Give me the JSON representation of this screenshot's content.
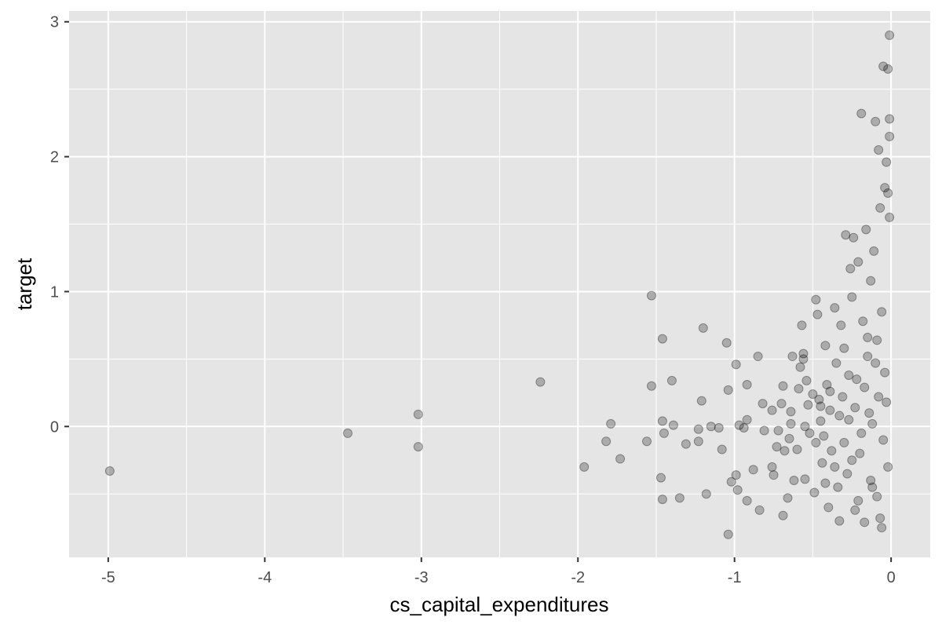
{
  "chart_data": {
    "type": "scatter",
    "xlabel": "cs_capital_expenditures",
    "ylabel": "target",
    "xlim": [
      -5.25,
      0.25
    ],
    "ylim": [
      -0.97,
      3.08
    ],
    "x_ticks": [
      -5,
      -4,
      -3,
      -2,
      -1,
      0
    ],
    "x_tick_labels": [
      "-5",
      "-4",
      "-3",
      "-2",
      "-1",
      "0"
    ],
    "y_ticks": [
      0,
      1,
      2,
      3
    ],
    "y_tick_labels": [
      "0",
      "1",
      "2",
      "3"
    ],
    "grid": true,
    "point_color": "#000000",
    "point_alpha": 0.25,
    "panel_background": "#e5e5e5",
    "grid_color": "#ffffff",
    "points": [
      [
        -4.99,
        -0.33
      ],
      [
        -3.47,
        -0.05
      ],
      [
        -3.02,
        0.09
      ],
      [
        -3.02,
        -0.15
      ],
      [
        -2.24,
        0.33
      ],
      [
        -1.96,
        -0.3
      ],
      [
        -1.79,
        0.02
      ],
      [
        -1.82,
        -0.11
      ],
      [
        -1.73,
        -0.24
      ],
      [
        -1.56,
        -0.11
      ],
      [
        -1.53,
        0.97
      ],
      [
        -1.53,
        0.3
      ],
      [
        -1.46,
        0.65
      ],
      [
        -1.46,
        0.04
      ],
      [
        -1.45,
        -0.05
      ],
      [
        -1.47,
        -0.38
      ],
      [
        -1.46,
        -0.54
      ],
      [
        -1.4,
        0.34
      ],
      [
        -1.39,
        0.01
      ],
      [
        -1.35,
        -0.53
      ],
      [
        -1.31,
        -0.13
      ],
      [
        -1.23,
        -0.02
      ],
      [
        -1.23,
        -0.11
      ],
      [
        -1.21,
        0.19
      ],
      [
        -1.2,
        0.73
      ],
      [
        -1.18,
        -0.5
      ],
      [
        -1.15,
        0.0
      ],
      [
        -1.1,
        -0.01
      ],
      [
        -1.08,
        -0.17
      ],
      [
        -1.05,
        0.62
      ],
      [
        -1.04,
        0.27
      ],
      [
        -1.04,
        -0.8
      ],
      [
        -1.02,
        -0.41
      ],
      [
        -0.99,
        0.46
      ],
      [
        -0.99,
        -0.36
      ],
      [
        -0.98,
        -0.47
      ],
      [
        -0.97,
        0.01
      ],
      [
        -0.94,
        -0.01
      ],
      [
        -0.92,
        0.05
      ],
      [
        -0.92,
        0.31
      ],
      [
        -0.92,
        -0.55
      ],
      [
        -0.88,
        -0.32
      ],
      [
        -0.85,
        0.52
      ],
      [
        -0.84,
        -0.62
      ],
      [
        -0.82,
        0.17
      ],
      [
        -0.81,
        -0.03
      ],
      [
        -0.76,
        0.12
      ],
      [
        -0.76,
        -0.3
      ],
      [
        -0.75,
        -0.36
      ],
      [
        -0.73,
        -0.15
      ],
      [
        -0.72,
        -0.03
      ],
      [
        -0.7,
        0.17
      ],
      [
        -0.69,
        0.3
      ],
      [
        -0.69,
        -0.66
      ],
      [
        -0.68,
        -0.18
      ],
      [
        -0.66,
        -0.53
      ],
      [
        -0.65,
        -0.09
      ],
      [
        -0.64,
        0.11
      ],
      [
        -0.64,
        0.02
      ],
      [
        -0.63,
        0.52
      ],
      [
        -0.62,
        -0.4
      ],
      [
        -0.6,
        -0.17
      ],
      [
        -0.59,
        0.28
      ],
      [
        -0.58,
        0.44
      ],
      [
        -0.57,
        0.75
      ],
      [
        -0.56,
        0.54
      ],
      [
        -0.56,
        0.5
      ],
      [
        -0.55,
        0.0
      ],
      [
        -0.55,
        -0.39
      ],
      [
        -0.54,
        0.34
      ],
      [
        -0.53,
        0.16
      ],
      [
        -0.52,
        -0.05
      ],
      [
        -0.5,
        0.24
      ],
      [
        -0.49,
        -0.49
      ],
      [
        -0.48,
        0.94
      ],
      [
        -0.47,
        0.83
      ],
      [
        -0.46,
        0.2
      ],
      [
        -0.45,
        0.04
      ],
      [
        -0.44,
        -0.27
      ],
      [
        -0.43,
        -0.07
      ],
      [
        -0.42,
        0.6
      ],
      [
        -0.41,
        0.31
      ],
      [
        -0.4,
        -0.6
      ],
      [
        -0.39,
        0.12
      ],
      [
        -0.38,
        -0.18
      ],
      [
        -0.36,
        0.88
      ],
      [
        -0.35,
        0.47
      ],
      [
        -0.34,
        -0.45
      ],
      [
        -0.33,
        -0.7
      ],
      [
        -0.32,
        0.75
      ],
      [
        -0.31,
        0.22
      ],
      [
        -0.3,
        0.58
      ],
      [
        -0.29,
        1.42
      ],
      [
        -0.28,
        -0.35
      ],
      [
        -0.27,
        0.05
      ],
      [
        -0.26,
        1.17
      ],
      [
        -0.25,
        0.96
      ],
      [
        -0.24,
        1.4
      ],
      [
        -0.23,
        -0.62
      ],
      [
        -0.22,
        0.35
      ],
      [
        -0.21,
        1.22
      ],
      [
        -0.2,
        -0.2
      ],
      [
        -0.19,
        2.32
      ],
      [
        -0.18,
        0.78
      ],
      [
        -0.17,
        -0.71
      ],
      [
        -0.16,
        1.46
      ],
      [
        -0.15,
        0.52
      ],
      [
        -0.14,
        0.1
      ],
      [
        -0.13,
        1.08
      ],
      [
        -0.12,
        -0.45
      ],
      [
        -0.11,
        1.3
      ],
      [
        -0.1,
        2.26
      ],
      [
        -0.09,
        0.64
      ],
      [
        -0.08,
        2.05
      ],
      [
        -0.07,
        1.62
      ],
      [
        -0.06,
        -0.75
      ],
      [
        -0.05,
        2.67
      ],
      [
        -0.04,
        1.77
      ],
      [
        -0.03,
        1.96
      ],
      [
        -0.02,
        2.65
      ],
      [
        -0.01,
        2.9
      ],
      [
        -0.01,
        2.28
      ],
      [
        -0.01,
        2.15
      ],
      [
        -0.02,
        1.73
      ],
      [
        -0.01,
        1.55
      ],
      [
        -0.03,
        0.18
      ],
      [
        -0.02,
        -0.3
      ],
      [
        -0.04,
        0.4
      ],
      [
        -0.05,
        -0.1
      ],
      [
        -0.06,
        0.85
      ],
      [
        -0.07,
        -0.68
      ],
      [
        -0.08,
        0.22
      ],
      [
        -0.09,
        -0.52
      ],
      [
        -0.1,
        0.47
      ],
      [
        -0.12,
        0.02
      ],
      [
        -0.13,
        -0.4
      ],
      [
        -0.15,
        0.66
      ],
      [
        -0.17,
        0.29
      ],
      [
        -0.19,
        -0.05
      ],
      [
        -0.21,
        -0.55
      ],
      [
        -0.23,
        0.14
      ],
      [
        -0.25,
        -0.25
      ],
      [
        -0.27,
        0.38
      ],
      [
        -0.3,
        -0.12
      ],
      [
        -0.33,
        0.08
      ],
      [
        -0.36,
        -0.3
      ],
      [
        -0.39,
        0.26
      ],
      [
        -0.42,
        -0.42
      ],
      [
        -0.45,
        0.15
      ],
      [
        -0.48,
        -0.12
      ]
    ]
  }
}
